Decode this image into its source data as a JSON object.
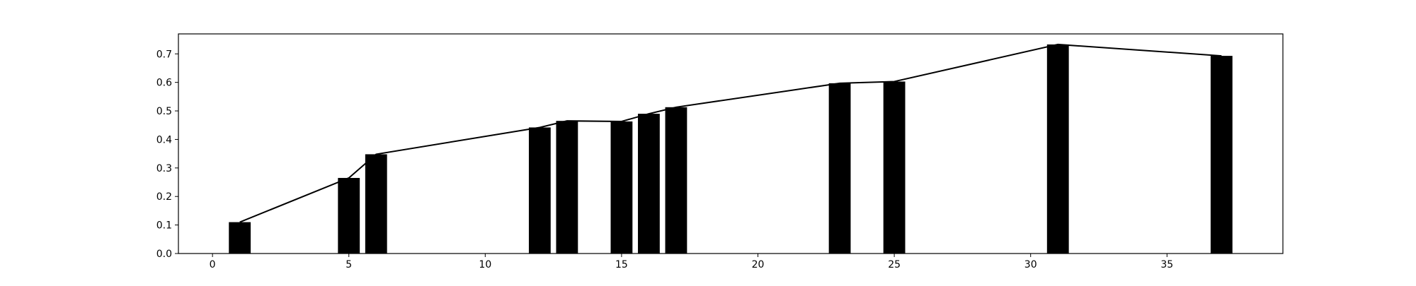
{
  "chart_data": {
    "type": "bar",
    "title": "",
    "xlabel": "",
    "ylabel": "",
    "x": [
      1,
      5,
      6,
      12,
      13,
      15,
      16,
      17,
      23,
      25,
      31,
      37
    ],
    "values": [
      0.11,
      0.265,
      0.348,
      0.442,
      0.465,
      0.463,
      0.49,
      0.513,
      0.597,
      0.603,
      0.733,
      0.693
    ],
    "xlim": [
      -1.25,
      39.25
    ],
    "ylim": [
      0,
      0.77
    ],
    "xticks": [
      0,
      5,
      10,
      15,
      20,
      25,
      30,
      35
    ],
    "yticks": [
      0.0,
      0.1,
      0.2,
      0.3,
      0.4,
      0.5,
      0.6,
      0.7
    ],
    "ytick_labels": [
      "0.0",
      "0.1",
      "0.2",
      "0.3",
      "0.4",
      "0.5",
      "0.6",
      "0.7"
    ],
    "bar_width": 0.8,
    "bar_color": "#000000",
    "line_color": "#000000",
    "overlay": "line through bar tops",
    "grid": false,
    "legend": "none"
  }
}
